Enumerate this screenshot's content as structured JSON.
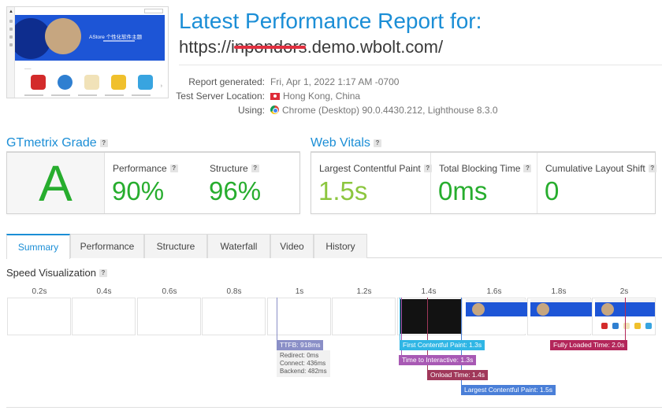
{
  "report": {
    "title": "Latest Performance Report for:",
    "url_prefix": "https://",
    "url_redacted": "inpondors",
    "url_suffix": ".demo.wbolt.com/",
    "thumbnail_hero_text": "AStore 个性化软件主题",
    "meta": [
      {
        "key": "Report generated:",
        "value": "Fri, Apr 1, 2022 1:17 AM -0700",
        "icon": ""
      },
      {
        "key": "Test Server Location:",
        "value": "Hong Kong, China",
        "icon": "hong-kong-flag-icon"
      },
      {
        "key": "Using:",
        "value": "Chrome (Desktop) 90.0.4430.212, Lighthouse 8.3.0",
        "icon": "chrome-icon"
      }
    ]
  },
  "grade": {
    "title": "GTmetrix Grade",
    "help": "?",
    "letter": "A",
    "performance_label": "Performance",
    "performance_value": "90%",
    "structure_label": "Structure",
    "structure_value": "96%"
  },
  "vitals": {
    "title": "Web Vitals",
    "help": "?",
    "lcp_label": "Largest Contentful Paint",
    "lcp_value": "1.5s",
    "tbt_label": "Total Blocking Time",
    "tbt_value": "0ms",
    "cls_label": "Cumulative Layout Shift",
    "cls_value": "0"
  },
  "tabs": [
    "Summary",
    "Performance",
    "Structure",
    "Waterfall",
    "Video",
    "History"
  ],
  "active_tab": "Summary",
  "speed": {
    "title": "Speed Visualization",
    "help": "?",
    "ticks": [
      "0.2s",
      "0.4s",
      "0.6s",
      "0.8s",
      "1s",
      "1.2s",
      "1.4s",
      "1.6s",
      "1.8s",
      "2s"
    ],
    "ttfb": "TTFB: 918ms",
    "redirect": "Redirect: 0ms",
    "connect": "Connect: 436ms",
    "backend": "Backend: 482ms",
    "fcp": "First Contentful Paint: 1.3s",
    "tti": "Time to Interactive: 1.3s",
    "onload": "Onload Time: 1.4s",
    "lcp": "Largest Contentful Paint: 1.5s",
    "fully_loaded": "Fully Loaded Time: 2.0s"
  },
  "colors": {
    "accent": "#1b8ed6",
    "grade_green": "#27ad2e",
    "lcp_green": "#8cc63f",
    "ttfb": "#8a8fc7",
    "fcp": "#2fb6e5",
    "tti": "#a859b4",
    "onload": "#a0385a",
    "lcp_marker": "#4a7fd8",
    "fully_loaded": "#b3265a"
  }
}
